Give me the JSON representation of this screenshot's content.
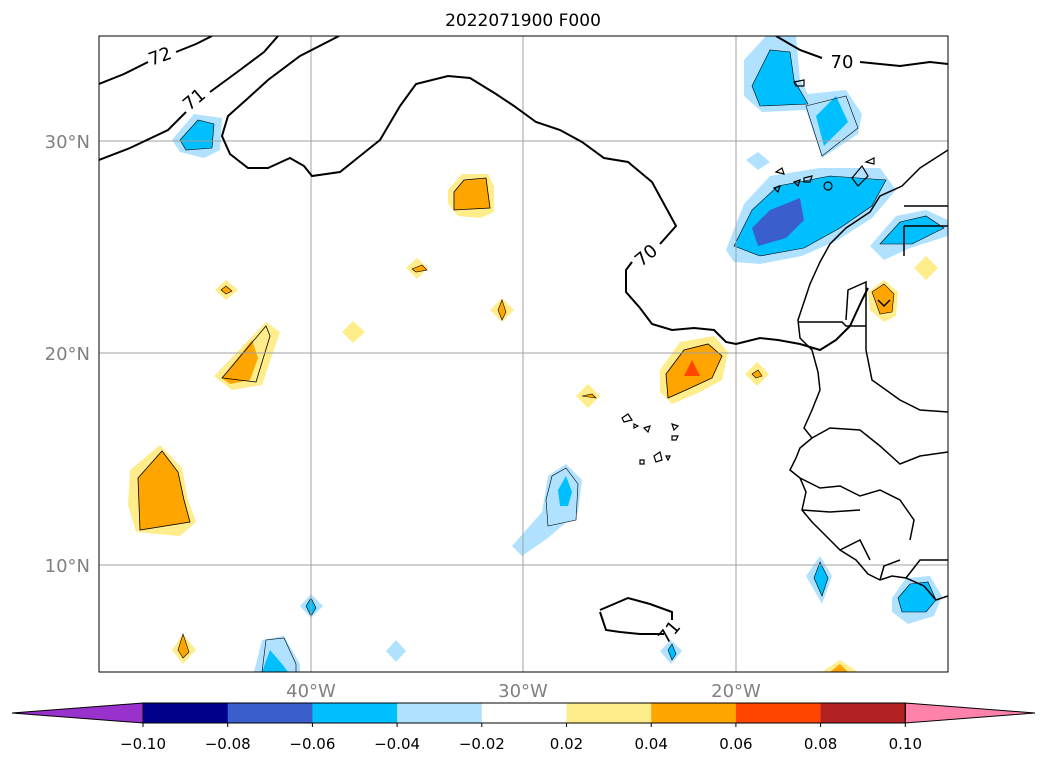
{
  "title": "2022071900 F000",
  "axes": {
    "lon_ticks": [
      "40°W",
      "30°W",
      "20°W"
    ],
    "lat_ticks": [
      "30°N",
      "20°N",
      "10°N"
    ],
    "tick_color": "#808080",
    "grid_color": "#a0a0a0"
  },
  "contours": [
    {
      "label": "72"
    },
    {
      "label": "71"
    },
    {
      "label": "70"
    },
    {
      "label": "70"
    },
    {
      "label": "71"
    }
  ],
  "colorbar": {
    "tick_labels": [
      "−0.10",
      "−0.08",
      "−0.06",
      "−0.04",
      "−0.02",
      "0.02",
      "0.04",
      "0.06",
      "0.08",
      "0.10"
    ],
    "colors": [
      "#9932cc",
      "#00008b",
      "#3a5fcd",
      "#00bfff",
      "#b0e2ff",
      "#ffffff",
      "#ffec8b",
      "#ffa500",
      "#ff4500",
      "#b22222",
      "#ff82ab"
    ],
    "extend": "both"
  }
}
